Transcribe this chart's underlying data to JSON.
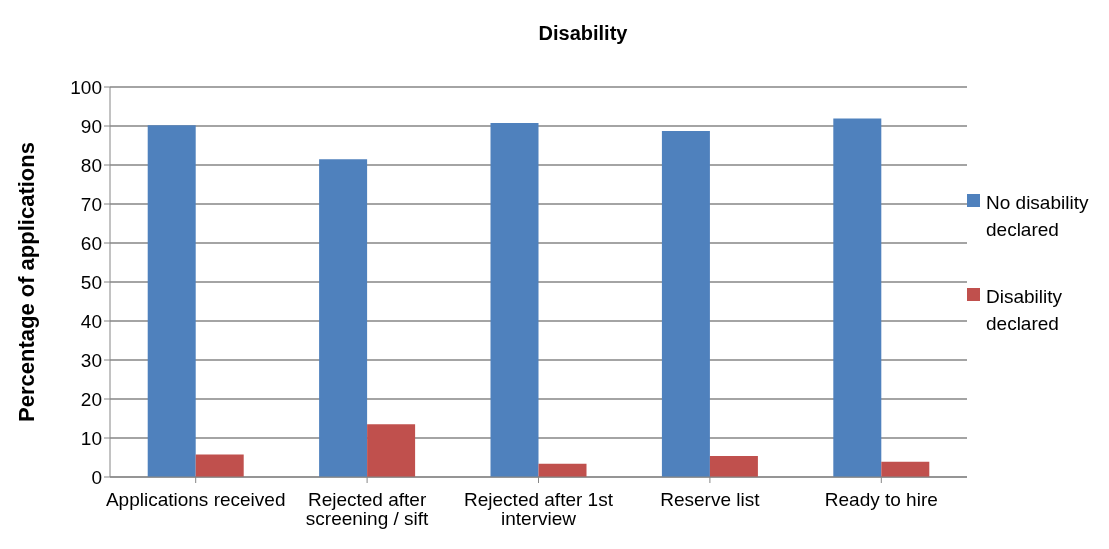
{
  "chart_data": {
    "type": "bar",
    "title": "Disability",
    "ylabel": "Percentage of applications",
    "categories": [
      "Applications received",
      "Rejected after screening / sift",
      "Rejected after 1st interview",
      "Reserve list",
      "Ready to hire"
    ],
    "series": [
      {
        "name": "No disability declared",
        "color": "#4f81bd",
        "values": [
          90.2,
          81.5,
          90.8,
          88.7,
          91.9
        ]
      },
      {
        "name": "Disability declared",
        "color": "#c0504d",
        "values": [
          5.8,
          13.5,
          3.4,
          5.4,
          3.9
        ]
      }
    ],
    "ylim": [
      0,
      100
    ],
    "yticks": [
      0,
      10,
      20,
      30,
      40,
      50,
      60,
      70,
      80,
      90,
      100
    ],
    "grid": "y",
    "legend": "right"
  }
}
